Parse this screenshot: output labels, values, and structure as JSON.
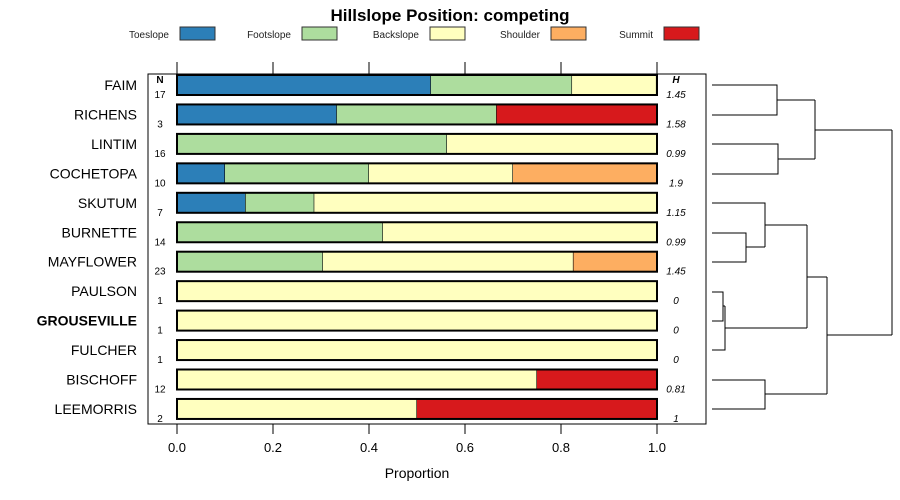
{
  "chart_data": {
    "type": "bar",
    "orientation": "horizontal-stacked",
    "title": "Hillslope Position: competing",
    "xlabel": "Proportion",
    "xlim": [
      0,
      1
    ],
    "xticks": [
      "0.0",
      "0.2",
      "0.4",
      "0.6",
      "0.8",
      "1.0"
    ],
    "n_header": "N",
    "h_header": "H",
    "legend_position": "top",
    "series": [
      {
        "name": "Toeslope",
        "color": "#2c7fb8"
      },
      {
        "name": "Footslope",
        "color": "#addd9e"
      },
      {
        "name": "Backslope",
        "color": "#ffffbf"
      },
      {
        "name": "Shoulder",
        "color": "#fdae61"
      },
      {
        "name": "Summit",
        "color": "#d7191c"
      }
    ],
    "categories": [
      "FAIM",
      "RICHENS",
      "LINTIM",
      "COCHETOPA",
      "SKUTUM",
      "BURNETTE",
      "MAYFLOWER",
      "PAULSON",
      "GROUSEVILLE",
      "FULCHER",
      "BISCHOFF",
      "LEEMORRIS"
    ],
    "bold_category": "GROUSEVILLE",
    "rows": [
      {
        "name": "FAIM",
        "n": "17",
        "h": "1.45",
        "values": [
          0.529,
          0.294,
          0.176,
          0,
          0
        ]
      },
      {
        "name": "RICHENS",
        "n": "3",
        "h": "1.58",
        "values": [
          0.333,
          0.333,
          0,
          0,
          0.333
        ]
      },
      {
        "name": "LINTIM",
        "n": "16",
        "h": "0.99",
        "values": [
          0,
          0.5625,
          0.4375,
          0,
          0
        ]
      },
      {
        "name": "COCHETOPA",
        "n": "10",
        "h": "1.9",
        "values": [
          0.1,
          0.3,
          0.3,
          0.3,
          0
        ]
      },
      {
        "name": "SKUTUM",
        "n": "7",
        "h": "1.15",
        "values": [
          0.143,
          0.143,
          0.714,
          0,
          0
        ]
      },
      {
        "name": "BURNETTE",
        "n": "14",
        "h": "0.99",
        "values": [
          0,
          0.429,
          0.571,
          0,
          0
        ]
      },
      {
        "name": "MAYFLOWER",
        "n": "23",
        "h": "1.45",
        "values": [
          0,
          0.304,
          0.522,
          0.174,
          0
        ]
      },
      {
        "name": "PAULSON",
        "n": "1",
        "h": "0",
        "values": [
          0,
          0,
          1,
          0,
          0
        ]
      },
      {
        "name": "GROUSEVILLE",
        "n": "1",
        "h": "0",
        "values": [
          0,
          0,
          1,
          0,
          0
        ]
      },
      {
        "name": "FULCHER",
        "n": "1",
        "h": "0",
        "values": [
          0,
          0,
          1,
          0,
          0
        ]
      },
      {
        "name": "BISCHOFF",
        "n": "12",
        "h": "0.81",
        "values": [
          0,
          0,
          0.75,
          0,
          0.25
        ]
      },
      {
        "name": "LEEMORRIS",
        "n": "2",
        "h": "1",
        "values": [
          0,
          0,
          0.5,
          0,
          0.5
        ]
      }
    ]
  }
}
